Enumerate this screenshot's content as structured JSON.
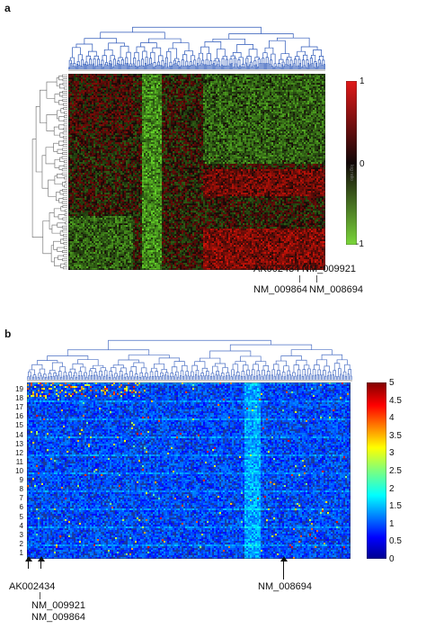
{
  "panel_a": {
    "letter": "a",
    "colorbar_ticks": [
      "1",
      "0",
      "-1"
    ],
    "colorbar_title": "log ratio",
    "gene_labels": {
      "ak002434": "AK002434",
      "nm_009921": "NM_009921",
      "nm_009864": "NM_009864",
      "nm_008694": "NM_008694"
    },
    "colors": {
      "positive": "#e01818",
      "zero": "#120808",
      "negative": "#5fcf2a",
      "dendrogram": "#2a56b8"
    }
  },
  "panel_b": {
    "letter": "b",
    "colorbar_ticks": [
      "5",
      "4.5",
      "4",
      "3.5",
      "3",
      "2.5",
      "2",
      "1.5",
      "1",
      "0.5",
      "0"
    ],
    "row_labels": [
      "19",
      "18",
      "17",
      "16",
      "15",
      "14",
      "13",
      "12",
      "11",
      "10",
      "9",
      "8",
      "7",
      "6",
      "5",
      "4",
      "3",
      "2",
      "1"
    ],
    "gene_labels": {
      "ak002434": "AK002434",
      "nm_009921": "NM_009921",
      "nm_009864": "NM_009864",
      "nm_008694": "NM_008694"
    },
    "colors": {
      "low": "#1a2a8a",
      "mid": "#2fc6d8",
      "high": "#c81a10",
      "dendrogram": "#4a6fc4"
    }
  }
}
